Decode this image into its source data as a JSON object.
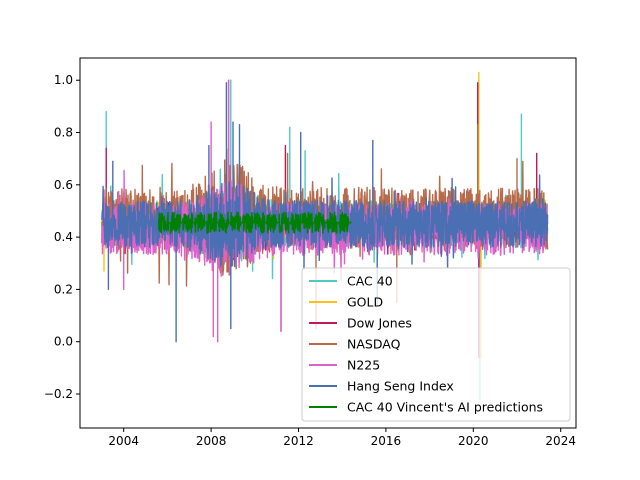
{
  "chart_data": {
    "type": "line",
    "title": "",
    "xlabel": "",
    "ylabel": "",
    "xlim": [
      2002.0,
      2024.7
    ],
    "ylim": [
      -0.33,
      1.085
    ],
    "x_ticks": [
      2004,
      2008,
      2012,
      2016,
      2020,
      2024
    ],
    "x_tick_labels": [
      "2004",
      "2008",
      "2012",
      "2016",
      "2020",
      "2024"
    ],
    "y_ticks": [
      -0.2,
      0.0,
      0.2,
      0.4,
      0.6,
      0.8,
      1.0
    ],
    "y_tick_labels": [
      "−0.2",
      "0.0",
      "0.2",
      "0.4",
      "0.6",
      "0.8",
      "1.0"
    ],
    "grid": false,
    "legend_position": "lower-right",
    "series": [
      {
        "name": "CAC 40",
        "color": "#4fc9c6",
        "x_start": 2003.0,
        "x_end": 2023.4,
        "base": 0.45,
        "amp": 0.09,
        "spikes": [
          [
            2003.2,
            0.88
          ],
          [
            2008.9,
            1.0
          ],
          [
            2011.6,
            0.82
          ],
          [
            2012.3,
            0.73
          ],
          [
            2020.2,
            0.58
          ],
          [
            2020.3,
            -0.23
          ],
          [
            2022.2,
            0.87
          ],
          [
            2009.9,
            0.27
          ]
        ]
      },
      {
        "name": "GOLD",
        "color": "#fbc01a",
        "x_start": 2003.0,
        "x_end": 2023.4,
        "base": 0.45,
        "amp": 0.06,
        "spikes": [
          [
            2020.25,
            1.03
          ],
          [
            2020.35,
            -0.06
          ],
          [
            2003.1,
            0.27
          ]
        ]
      },
      {
        "name": "Dow Jones",
        "color": "#c2185b",
        "x_start": 2003.0,
        "x_end": 2023.4,
        "base": 0.45,
        "amp": 0.06,
        "spikes": [
          [
            2003.2,
            0.74
          ],
          [
            2020.2,
            0.99
          ],
          [
            2022.9,
            0.72
          ],
          [
            2011.4,
            0.75
          ],
          [
            2020.25,
            -0.06
          ]
        ]
      },
      {
        "name": "NASDAQ",
        "color": "#b86b4b",
        "x_start": 2003.0,
        "x_end": 2023.4,
        "base": 0.47,
        "amp": 0.12,
        "spikes": [
          [
            2011.2,
            0.04
          ],
          [
            2012.8,
            0.05
          ],
          [
            2016.5,
            0.15
          ],
          [
            2011.5,
            0.72
          ],
          [
            2020.2,
            0.83
          ],
          [
            2022.0,
            0.7
          ],
          [
            2008.8,
            1.0
          ]
        ]
      },
      {
        "name": "N225",
        "color": "#e060cc",
        "x_start": 2003.0,
        "x_end": 2023.4,
        "base": 0.43,
        "amp": 0.1,
        "spikes": [
          [
            2008.0,
            0.84
          ],
          [
            2008.8,
            1.0
          ],
          [
            2008.1,
            0.02
          ],
          [
            2008.3,
            0.0
          ],
          [
            2011.2,
            0.04
          ],
          [
            2004.0,
            0.2
          ]
        ]
      },
      {
        "name": "Hang Seng Index",
        "color": "#4a6fb3",
        "x_start": 2003.0,
        "x_end": 2023.4,
        "base": 0.45,
        "amp": 0.09,
        "spikes": [
          [
            2008.7,
            0.99
          ],
          [
            2009.0,
            0.84
          ],
          [
            2006.4,
            0.0
          ],
          [
            2008.9,
            0.05
          ],
          [
            2009.3,
            0.83
          ],
          [
            2007.9,
            0.75
          ],
          [
            2012.1,
            0.8
          ],
          [
            2015.4,
            0.77
          ],
          [
            2015.6,
            0.14
          ],
          [
            2003.3,
            0.2
          ],
          [
            2003.5,
            0.69
          ]
        ]
      },
      {
        "name": "CAC 40 Vincent's AI predictions",
        "color": "#008000",
        "x_start": 2005.6,
        "x_end": 2014.4,
        "base": 0.455,
        "amp": 0.04,
        "spikes": []
      }
    ]
  }
}
